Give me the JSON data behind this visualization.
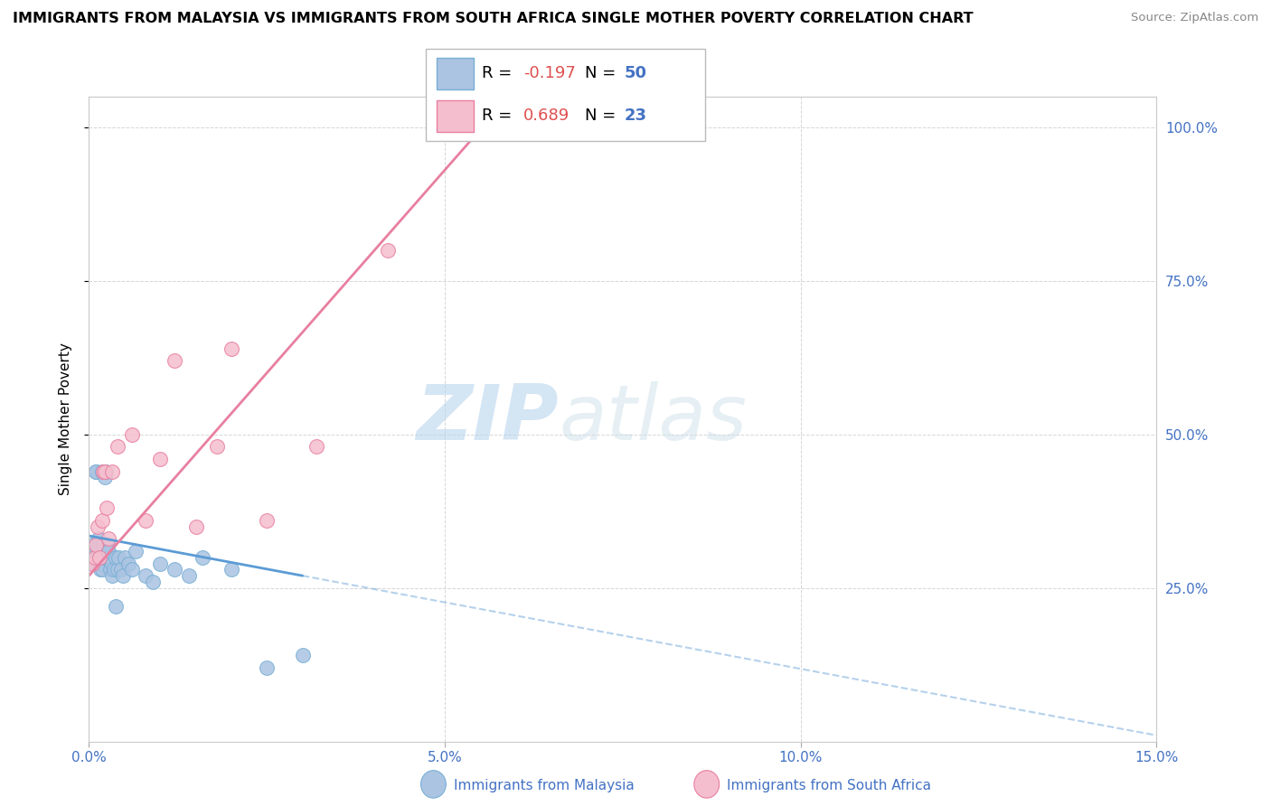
{
  "title": "IMMIGRANTS FROM MALAYSIA VS IMMIGRANTS FROM SOUTH AFRICA SINGLE MOTHER POVERTY CORRELATION CHART",
  "source": "Source: ZipAtlas.com",
  "ylabel": "Single Mother Poverty",
  "xlabel_malaysia": "Immigrants from Malaysia",
  "xlabel_sa": "Immigrants from South Africa",
  "xmin": 0.0,
  "xmax": 0.15,
  "ymin": 0.0,
  "ymax": 1.05,
  "yticks": [
    0.25,
    0.5,
    0.75,
    1.0
  ],
  "ytick_labels": [
    "25.0%",
    "50.0%",
    "75.0%",
    "100.0%"
  ],
  "xticks": [
    0.0,
    0.05,
    0.1,
    0.15
  ],
  "xtick_labels": [
    "0.0%",
    "5.0%",
    "10.0%",
    "15.0%"
  ],
  "r_malaysia": -0.197,
  "n_malaysia": 50,
  "r_sa": 0.689,
  "n_sa": 23,
  "malaysia_color": "#aac4e2",
  "malaysia_edge": "#7aafd4",
  "sa_color": "#f5bece",
  "sa_edge": "#e87fa0",
  "trend_malaysia_color": "#5b9bd5",
  "trend_sa_color": "#e87fa0",
  "watermark_zip": "ZIP",
  "watermark_atlas": "atlas",
  "malaysia_x": [
    0.0004,
    0.0006,
    0.0008,
    0.001,
    0.001,
    0.0012,
    0.0012,
    0.0013,
    0.0014,
    0.0015,
    0.0015,
    0.0016,
    0.0017,
    0.0017,
    0.0018,
    0.0018,
    0.0019,
    0.002,
    0.002,
    0.0021,
    0.0022,
    0.0023,
    0.0024,
    0.0025,
    0.0026,
    0.0027,
    0.0028,
    0.003,
    0.0032,
    0.0033,
    0.0035,
    0.0037,
    0.0038,
    0.004,
    0.0042,
    0.0045,
    0.0048,
    0.005,
    0.0055,
    0.006,
    0.0065,
    0.008,
    0.009,
    0.01,
    0.012,
    0.014,
    0.016,
    0.02,
    0.025,
    0.03
  ],
  "malaysia_y": [
    0.32,
    0.29,
    0.31,
    0.44,
    0.44,
    0.31,
    0.3,
    0.32,
    0.33,
    0.29,
    0.3,
    0.28,
    0.32,
    0.29,
    0.31,
    0.28,
    0.44,
    0.32,
    0.3,
    0.31,
    0.43,
    0.44,
    0.3,
    0.31,
    0.32,
    0.3,
    0.31,
    0.28,
    0.27,
    0.29,
    0.28,
    0.3,
    0.22,
    0.28,
    0.3,
    0.28,
    0.27,
    0.3,
    0.29,
    0.28,
    0.31,
    0.27,
    0.26,
    0.29,
    0.28,
    0.27,
    0.3,
    0.28,
    0.12,
    0.14
  ],
  "sa_x": [
    0.0005,
    0.0008,
    0.001,
    0.0012,
    0.0015,
    0.0018,
    0.002,
    0.0022,
    0.0025,
    0.0028,
    0.0032,
    0.004,
    0.006,
    0.008,
    0.01,
    0.012,
    0.015,
    0.018,
    0.02,
    0.025,
    0.032,
    0.042,
    0.056
  ],
  "sa_y": [
    0.29,
    0.3,
    0.32,
    0.35,
    0.3,
    0.36,
    0.44,
    0.44,
    0.38,
    0.33,
    0.44,
    0.48,
    0.5,
    0.36,
    0.46,
    0.62,
    0.35,
    0.48,
    0.64,
    0.36,
    0.48,
    0.8,
    1.0
  ],
  "trend_sa_x0": 0.0,
  "trend_sa_y0": 0.27,
  "trend_sa_x1": 0.056,
  "trend_sa_y1": 1.01,
  "trend_m_x0": 0.0,
  "trend_m_y0": 0.335,
  "trend_m_x1": 0.03,
  "trend_m_y1": 0.27
}
